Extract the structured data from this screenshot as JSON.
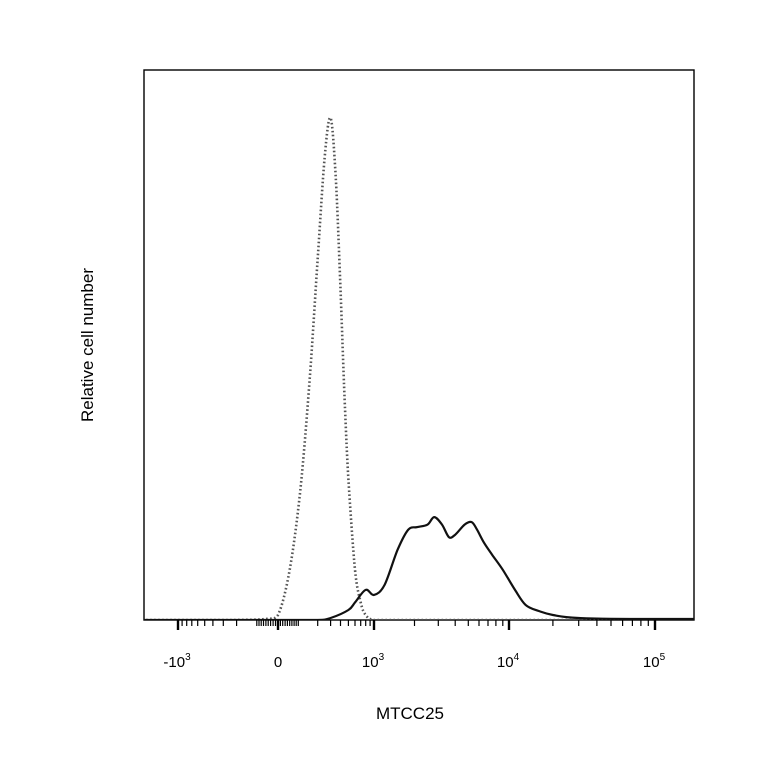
{
  "chart_data": {
    "type": "line",
    "xlabel": "MTCC25",
    "ylabel": "Relative cell number",
    "x_scale": "biexponential",
    "x_major_ticks": [
      {
        "value": -1000,
        "base": "-10",
        "exp": "3"
      },
      {
        "value": 0,
        "base": "0",
        "exp": ""
      },
      {
        "value": 1000,
        "base": "10",
        "exp": "3"
      },
      {
        "value": 10000,
        "base": "10",
        "exp": "4"
      },
      {
        "value": 100000,
        "base": "10",
        "exp": "5"
      }
    ],
    "y_ticks_shown": false,
    "grid": false,
    "legend": "none",
    "series": [
      {
        "style": "dotted",
        "color": "#555555",
        "x": [
          -2000,
          -500,
          -200,
          -50,
          0,
          50,
          100,
          150,
          200,
          250,
          300,
          350,
          400,
          450,
          500,
          600,
          700,
          800,
          1000,
          1500,
          3000,
          10000,
          100000,
          200000
        ],
        "y": [
          0,
          0,
          0,
          0.002,
          0.01,
          0.1,
          0.26,
          0.48,
          0.72,
          0.92,
          1.0,
          0.88,
          0.66,
          0.44,
          0.28,
          0.1,
          0.035,
          0.01,
          0,
          0,
          0,
          0,
          0,
          0.005
        ]
      },
      {
        "style": "solid",
        "color": "#111111",
        "x": [
          -2000,
          0,
          200,
          300,
          500,
          600,
          800,
          1000,
          1200,
          1500,
          1800,
          2100,
          2500,
          2800,
          3200,
          3600,
          4000,
          4700,
          5300,
          5800,
          6500,
          7500,
          9000,
          11000,
          13000,
          16000,
          20000,
          30000,
          100000,
          200000
        ],
        "y": [
          0,
          0,
          0,
          0.004,
          0.02,
          0.035,
          0.06,
          0.05,
          0.07,
          0.14,
          0.18,
          0.185,
          0.19,
          0.205,
          0.19,
          0.165,
          0.17,
          0.19,
          0.195,
          0.18,
          0.155,
          0.13,
          0.1,
          0.06,
          0.03,
          0.018,
          0.01,
          0.004,
          0.002,
          0.002
        ]
      }
    ]
  }
}
